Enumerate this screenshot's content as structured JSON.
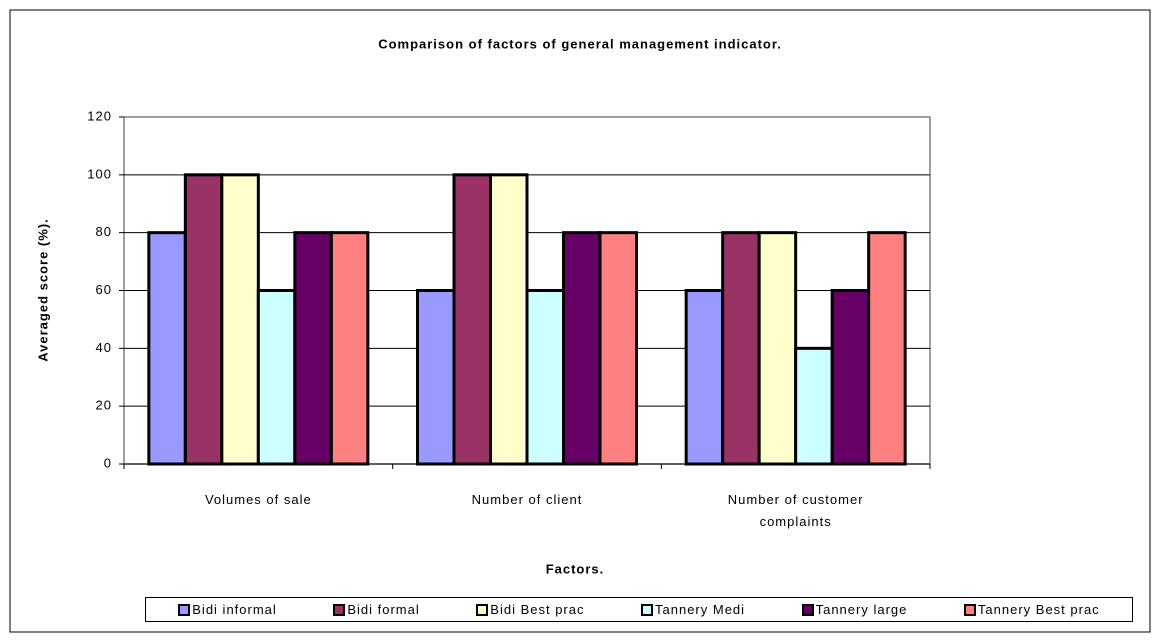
{
  "chart_data": {
    "type": "bar",
    "title": "Comparison of factors of general management indicator.",
    "xlabel": "Factors.",
    "ylabel": "Averaged score (%).",
    "categories": [
      "Volumes of sale",
      "Number of client",
      "Number of customer complaints"
    ],
    "series": [
      {
        "name": "Bidi informal",
        "color": "#9999ff",
        "values": [
          80,
          60,
          60
        ]
      },
      {
        "name": "Bidi formal",
        "color": "#993366",
        "values": [
          100,
          100,
          80
        ]
      },
      {
        "name": "Bidi Best prac",
        "color": "#ffffcc",
        "values": [
          100,
          100,
          80
        ]
      },
      {
        "name": "Tannery Medi",
        "color": "#ccffff",
        "values": [
          60,
          60,
          40
        ]
      },
      {
        "name": "Tannery large",
        "color": "#660066",
        "values": [
          80,
          80,
          60
        ]
      },
      {
        "name": "Tannery Best prac",
        "color": "#ff8080",
        "values": [
          80,
          80,
          80
        ]
      }
    ],
    "ylim": [
      0,
      120
    ],
    "yticks": [
      0,
      20,
      40,
      60,
      80,
      100,
      120
    ],
    "grid": true,
    "legend": "bottom"
  }
}
